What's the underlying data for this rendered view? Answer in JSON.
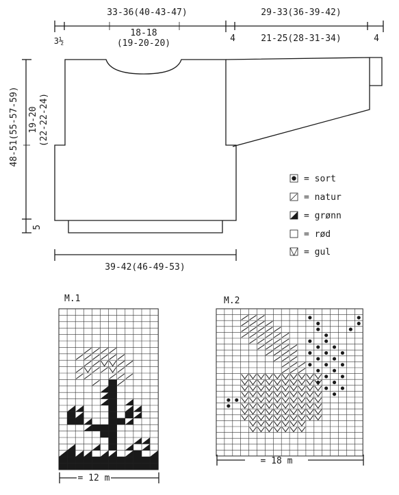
{
  "diagram": {
    "top_width": "33-36(40-43-47)",
    "neck_width_1": "18-18",
    "neck_width_2": "(19-20-20)",
    "shoulder_margin": "3½",
    "sleeve_length": "29-33(36-39-42)",
    "sleeve_margin_left": "4",
    "sleeve_width": "21-25(28-31-34)",
    "sleeve_margin_right": "4",
    "armhole_depth_1": "19-20",
    "armhole_depth_2": "(22-22-24)",
    "total_length": "48-51(55-57-59)",
    "rib_height": "5",
    "bottom_width": "39-42(46-49-53)"
  },
  "legend": [
    {
      "symbol": "sort-symbol",
      "label": "= sort"
    },
    {
      "symbol": "natur-symbol",
      "label": "= natur"
    },
    {
      "symbol": "gronn-symbol",
      "label": "= grønn"
    },
    {
      "symbol": "rod-symbol",
      "label": "= rød"
    },
    {
      "symbol": "gul-symbol",
      "label": "= gul"
    }
  ],
  "charts": [
    {
      "title": "M.1",
      "width_label": "= 12 m",
      "cols": 12,
      "rows": 25
    },
    {
      "title": "M.2",
      "width_label": "= 18 m",
      "cols": 18,
      "rows": 25
    }
  ]
}
